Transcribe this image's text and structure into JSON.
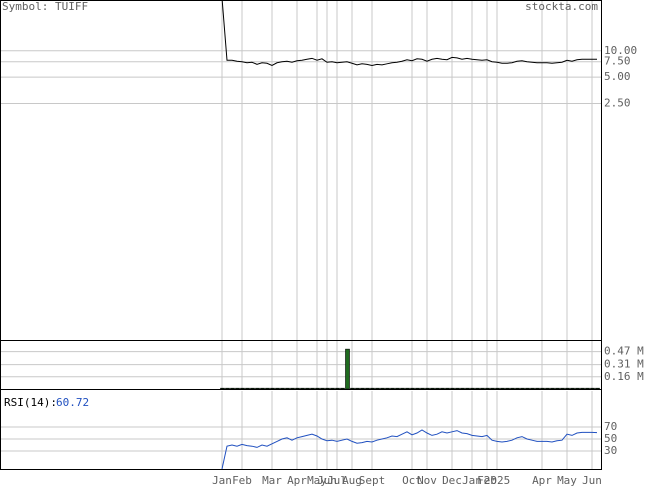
{
  "header": {
    "symbol": "Symbol: TUIFF",
    "site": "stockta.com"
  },
  "chart_data": [
    {
      "type": "line",
      "log_scale": true,
      "color": "#000000",
      "grid": true,
      "ylim": [
        0.005,
        37
      ],
      "yticks": [
        {
          "value": 10,
          "label": "10.00"
        },
        {
          "value": 7.5,
          "label": "7.50"
        },
        {
          "value": 5,
          "label": "5.00"
        },
        {
          "value": 2.5,
          "label": "2.50"
        }
      ],
      "values": [
        40,
        7.8,
        7.8,
        7.6,
        7.5,
        7.3,
        7.4,
        7.0,
        7.3,
        7.2,
        6.8,
        7.3,
        7.5,
        7.6,
        7.4,
        7.7,
        7.8,
        8.0,
        8.2,
        7.8,
        8.1,
        7.4,
        7.5,
        7.3,
        7.4,
        7.5,
        7.2,
        6.9,
        7.1,
        7.0,
        6.8,
        7.0,
        6.9,
        7.1,
        7.3,
        7.4,
        7.6,
        7.9,
        7.7,
        8.1,
        8.0,
        7.6,
        8.0,
        8.2,
        8.0,
        7.9,
        8.4,
        8.3,
        8.0,
        8.2,
        8.0,
        7.9,
        7.8,
        7.9,
        7.5,
        7.4,
        7.2,
        7.2,
        7.3,
        7.6,
        7.7,
        7.5,
        7.4,
        7.3,
        7.3,
        7.3,
        7.2,
        7.3,
        7.4,
        7.8,
        7.6,
        7.9,
        8.0,
        8.0,
        8.0,
        8.0
      ]
    },
    {
      "type": "bar",
      "color": "#1f6b1f",
      "grid": true,
      "ylim": [
        0.01,
        0.6
      ],
      "yticks": [
        {
          "value": 0.47,
          "label": "0.47 M"
        },
        {
          "value": 0.31,
          "label": "0.31 M"
        },
        {
          "value": 0.16,
          "label": "0.16 M"
        }
      ],
      "values": [
        0.02,
        0.02,
        0.02,
        0.02,
        0.02,
        0.02,
        0.02,
        0.02,
        0.02,
        0.02,
        0.02,
        0.02,
        0.02,
        0.02,
        0.02,
        0.02,
        0.02,
        0.02,
        0.02,
        0.02,
        0.02,
        0.02,
        0.02,
        0.02,
        0.02,
        0.5,
        0.02,
        0.02,
        0.02,
        0.02,
        0.02,
        0.02,
        0.02,
        0.02,
        0.02,
        0.02,
        0.02,
        0.02,
        0.02,
        0.02,
        0.02,
        0.02,
        0.02,
        0.02,
        0.02,
        0.02,
        0.02,
        0.02,
        0.02,
        0.02,
        0.02,
        0.02,
        0.02,
        0.02,
        0.02,
        0.02,
        0.02,
        0.02,
        0.02,
        0.02,
        0.02,
        0.02,
        0.02,
        0.02,
        0.02,
        0.02,
        0.02,
        0.02,
        0.02,
        0.02,
        0.02,
        0.02,
        0.02,
        0.02,
        0.02,
        0.02
      ]
    },
    {
      "type": "line",
      "title": "RSI(14):",
      "color": "#2050c0",
      "grid": true,
      "ylim": [
        0,
        130
      ],
      "yticks": [
        70,
        50,
        30
      ],
      "categories": [
        "Jan",
        null,
        null,
        null,
        "Feb",
        null,
        null,
        null,
        null,
        null,
        "Mar",
        null,
        null,
        null,
        null,
        "Apr",
        null,
        null,
        null,
        "May",
        null,
        "Jun",
        null,
        "Jul",
        null,
        null,
        "Aug",
        null,
        null,
        null,
        "Sept",
        null,
        null,
        null,
        null,
        null,
        null,
        null,
        "Oct",
        null,
        null,
        "Nov",
        null,
        null,
        null,
        null,
        "Dec",
        null,
        null,
        null,
        "Jan",
        null,
        null,
        "Feb",
        null,
        "2025",
        null,
        null,
        null,
        null,
        null,
        null,
        null,
        null,
        "Apr",
        null,
        null,
        null,
        null,
        "May",
        null,
        null,
        null,
        null,
        "Jun",
        null
      ],
      "values": [
        0,
        38,
        40,
        38,
        41,
        39,
        38,
        36,
        40,
        38,
        42,
        46,
        50,
        52,
        48,
        52,
        54,
        56,
        58,
        55,
        50,
        47,
        48,
        46,
        48,
        50,
        46,
        43,
        44,
        46,
        45,
        48,
        50,
        52,
        55,
        54,
        58,
        62,
        57,
        60,
        65,
        60,
        56,
        58,
        62,
        60,
        62,
        64,
        60,
        59,
        56,
        55,
        54,
        56,
        48,
        46,
        45,
        46,
        48,
        52,
        54,
        50,
        48,
        46,
        46,
        46,
        45,
        47,
        48,
        58,
        56,
        60,
        61,
        61,
        61,
        60.72
      ]
    }
  ]
}
